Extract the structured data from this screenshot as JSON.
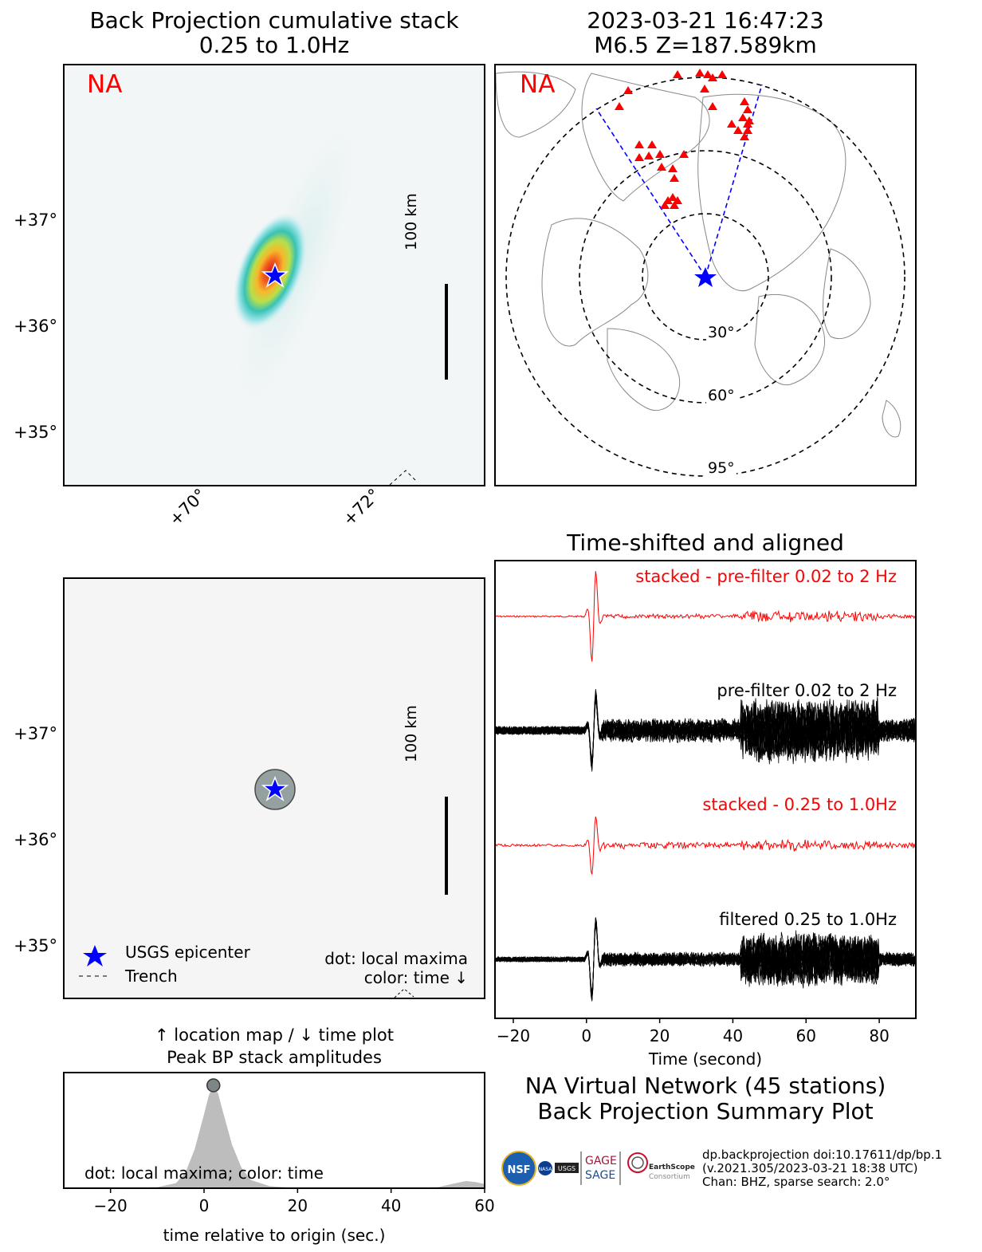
{
  "top_left": {
    "title_line1": "Back Projection cumulative stack",
    "title_line2": "0.25 to 1.0Hz",
    "network_label": "NA",
    "lat_labels": [
      "+37°",
      "+36°",
      "+35°"
    ],
    "lon_labels": [
      "+70°",
      "+72°"
    ],
    "scale_label": "100 km"
  },
  "top_right": {
    "title_line1": "2023-03-21 16:47:23",
    "title_line2": "M6.5 Z=187.589km",
    "network_label": "NA",
    "ring_labels": [
      "30°",
      "60°",
      "95°"
    ]
  },
  "mid_left": {
    "lat_labels": [
      "+37°",
      "+36°",
      "+35°"
    ],
    "scale_label": "100 km",
    "legend": {
      "epicenter": "USGS epicenter",
      "trench": "Trench"
    },
    "note_line1": "dot: local maxima",
    "note_line2": "color: time ↓",
    "axis_caption_line1": "↑ location map / ↓ time plot",
    "axis_caption_line2": "Peak BP stack amplitudes"
  },
  "waveforms": {
    "title": "Time-shifted and aligned",
    "labels": [
      "stacked - pre-filter 0.02 to 2 Hz",
      "pre-filter 0.02 to 2 Hz",
      "stacked - 0.25 to 1.0Hz",
      "filtered 0.25 to 1.0Hz"
    ],
    "xlabel": "Time (second)"
  },
  "summary": {
    "line1": "NA Virtual Network (45 stations)",
    "line2": "Back Projection Summary Plot",
    "footer_line1": "dp.backprojection doi:10.17611/dp/bp.1",
    "footer_line2": "(v.2021.305/2023-03-21 18:38 UTC)",
    "footer_line3": "Chan: BHZ, sparse search: 2.0°",
    "logos": [
      "NSF",
      "NASA",
      "USGS",
      "GAGE",
      "SAGE",
      "EarthScope",
      "Consortium"
    ]
  },
  "colors": {
    "accent": "#ff0000",
    "epicenter": "#0000ff",
    "fill": "#bdbdbd",
    "bg": "#f5f5f5"
  },
  "chart_data": [
    {
      "type": "line",
      "xlabel": "Time (second)",
      "xlim": [
        -25,
        90
      ],
      "x_ticks": [
        -20,
        0,
        20,
        40,
        60,
        80
      ],
      "series": [
        {
          "name": "stacked - pre-filter 0.02 to 2 Hz",
          "peak_time": 2
        },
        {
          "name": "pre-filter 0.02 to 2 Hz",
          "peak_time": 2
        },
        {
          "name": "stacked - 0.25 to 1.0Hz",
          "peak_time": 2
        },
        {
          "name": "filtered 0.25 to 1.0Hz",
          "peak_time": 2
        }
      ]
    },
    {
      "type": "area",
      "xlabel": "time relative to origin (sec.)",
      "xlim": [
        -30,
        60
      ],
      "x_ticks": [
        -20,
        0,
        20,
        40,
        60
      ],
      "annotation": "dot: local maxima; color: time",
      "x": [
        -30,
        -20,
        -10,
        -6,
        -4,
        -2,
        0,
        1,
        2,
        3,
        4,
        6,
        8,
        10,
        14,
        20,
        40,
        50,
        53,
        56,
        58,
        60
      ],
      "y": [
        0,
        0,
        0.01,
        0.05,
        0.15,
        0.38,
        0.72,
        0.9,
        1.0,
        0.92,
        0.75,
        0.42,
        0.2,
        0.08,
        0.02,
        0,
        0,
        0.01,
        0.04,
        0.07,
        0.06,
        0.04
      ],
      "local_maximum": {
        "x": 2,
        "y": 1.0
      }
    }
  ]
}
